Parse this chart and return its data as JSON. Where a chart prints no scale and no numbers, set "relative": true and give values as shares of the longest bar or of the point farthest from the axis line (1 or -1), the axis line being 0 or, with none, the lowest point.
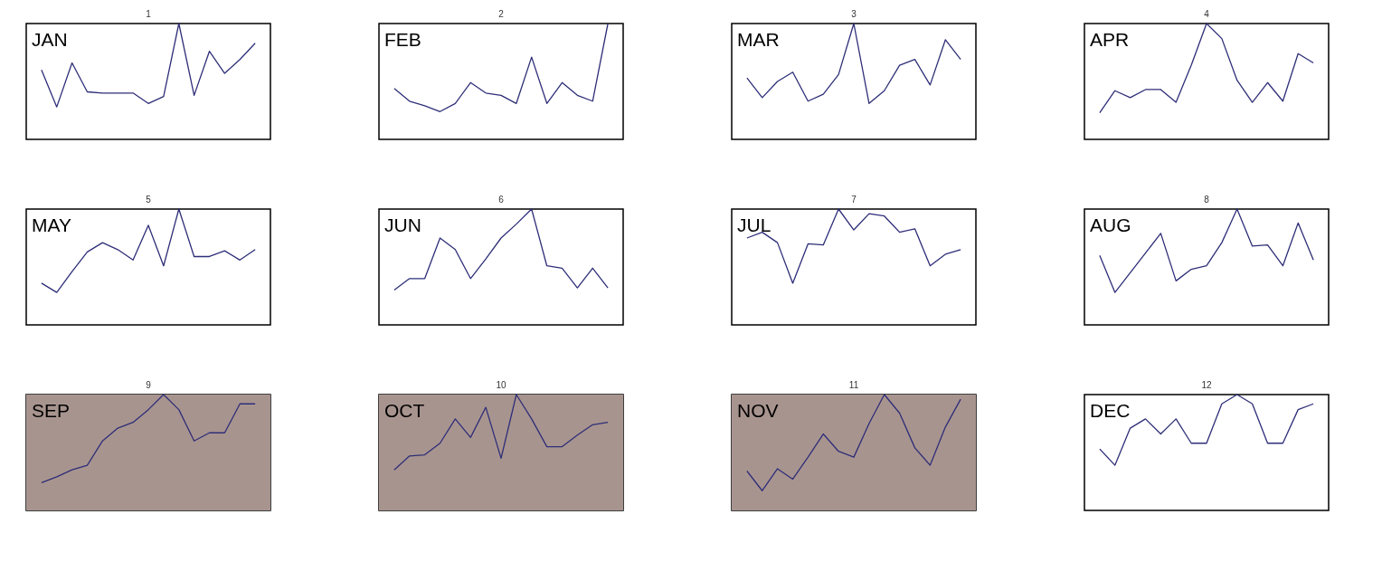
{
  "chart_data": [
    {
      "type": "line",
      "title": "1",
      "relative": true,
      "annotations": [
        "JAN"
      ],
      "categories": [
        null,
        null,
        null,
        null,
        null,
        null,
        null,
        null,
        null,
        null,
        null,
        null,
        null,
        null,
        null
      ],
      "series": [
        {
          "color": "#2e2e78",
          "values": [
            0.6,
            0.28,
            0.66,
            0.41,
            0.4,
            0.4,
            0.4,
            0.31,
            0.37,
            1,
            0.38,
            0.76,
            0.57,
            0.69,
            0.83
          ]
        }
      ]
    },
    {
      "type": "line",
      "title": "2",
      "relative": true,
      "annotations": [
        "FEB"
      ],
      "categories": [
        null,
        null,
        null,
        null,
        null,
        null,
        null,
        null,
        null,
        null,
        null,
        null,
        null,
        null,
        null
      ],
      "series": [
        {
          "color": "#2e2e78",
          "values": [
            0.44,
            0.33,
            0.29,
            0.24,
            0.31,
            0.49,
            0.4,
            0.38,
            0.31,
            0.71,
            0.31,
            0.49,
            0.38,
            0.33,
            1
          ]
        }
      ]
    },
    {
      "type": "line",
      "title": "3",
      "relative": true,
      "annotations": [
        "MAR"
      ],
      "categories": [
        null,
        null,
        null,
        null,
        null,
        null,
        null,
        null,
        null,
        null,
        null,
        null,
        null,
        null,
        null
      ],
      "series": [
        {
          "color": "#2e2e78",
          "values": [
            0.53,
            0.36,
            0.5,
            0.58,
            0.33,
            0.39,
            0.56,
            1,
            0.31,
            0.42,
            0.64,
            0.69,
            0.47,
            0.86,
            0.69
          ]
        }
      ]
    },
    {
      "type": "line",
      "title": "4",
      "relative": true,
      "annotations": [
        "APR"
      ],
      "categories": [
        null,
        null,
        null,
        null,
        null,
        null,
        null,
        null,
        null,
        null,
        null,
        null,
        null,
        null,
        null
      ],
      "series": [
        {
          "color": "#2e2e78",
          "values": [
            0.23,
            0.42,
            0.36,
            0.43,
            0.43,
            0.32,
            0.64,
            1,
            0.87,
            0.51,
            0.32,
            0.49,
            0.33,
            0.74,
            0.66
          ]
        }
      ]
    },
    {
      "type": "line",
      "title": "5",
      "relative": true,
      "annotations": [
        "MAY"
      ],
      "categories": [
        null,
        null,
        null,
        null,
        null,
        null,
        null,
        null,
        null,
        null,
        null,
        null,
        null,
        null,
        null
      ],
      "series": [
        {
          "color": "#2e2e78",
          "values": [
            0.36,
            0.28,
            0.46,
            0.63,
            0.71,
            0.65,
            0.56,
            0.86,
            0.51,
            1,
            0.59,
            0.59,
            0.64,
            0.56,
            0.65
          ]
        }
      ]
    },
    {
      "type": "line",
      "title": "6",
      "relative": true,
      "annotations": [
        "JUN"
      ],
      "categories": [
        null,
        null,
        null,
        null,
        null,
        null,
        null,
        null,
        null,
        null,
        null,
        null,
        null,
        null,
        null
      ],
      "series": [
        {
          "color": "#2e2e78",
          "values": [
            0.3,
            0.4,
            0.4,
            0.75,
            0.65,
            0.4,
            0.57,
            0.75,
            0.87,
            1,
            0.51,
            0.49,
            0.32,
            0.49,
            0.32
          ]
        }
      ]
    },
    {
      "type": "line",
      "title": "7",
      "relative": true,
      "annotations": [
        "JUL"
      ],
      "categories": [
        null,
        null,
        null,
        null,
        null,
        null,
        null,
        null,
        null,
        null,
        null,
        null,
        null,
        null,
        null
      ],
      "series": [
        {
          "color": "#2e2e78",
          "values": [
            0.75,
            0.8,
            0.71,
            0.36,
            0.7,
            0.69,
            1,
            0.82,
            0.96,
            0.94,
            0.8,
            0.83,
            0.51,
            0.61,
            0.65
          ]
        }
      ]
    },
    {
      "type": "line",
      "title": "8",
      "relative": true,
      "annotations": [
        "AUG"
      ],
      "categories": [
        null,
        null,
        null,
        null,
        null,
        null,
        null,
        null,
        null,
        null,
        null,
        null,
        null,
        null,
        null
      ],
      "series": [
        {
          "color": "#2e2e78",
          "values": [
            0.6,
            0.28,
            0.45,
            0.62,
            0.79,
            0.38,
            0.48,
            0.51,
            0.71,
            1,
            0.68,
            0.69,
            0.51,
            0.88,
            0.56
          ]
        }
      ]
    },
    {
      "type": "line",
      "title": "9",
      "relative": true,
      "annotations": [
        "SEP"
      ],
      "categories": [
        null,
        null,
        null,
        null,
        null,
        null,
        null,
        null,
        null,
        null,
        null,
        null,
        null,
        null,
        null
      ],
      "bands": [
        {
          "axis": "y",
          "from": 0,
          "to": 1,
          "color": "#a8948f"
        }
      ],
      "series": [
        {
          "color": "#2e2e78",
          "values": [
            0.24,
            0.29,
            0.35,
            0.39,
            0.6,
            0.71,
            0.76,
            0.87,
            1,
            0.87,
            0.6,
            0.67,
            0.67,
            0.92,
            0.92
          ]
        }
      ]
    },
    {
      "type": "line",
      "title": "10",
      "relative": true,
      "annotations": [
        "OCT"
      ],
      "categories": [
        null,
        null,
        null,
        null,
        null,
        null,
        null,
        null,
        null,
        null,
        null,
        null,
        null,
        null,
        null
      ],
      "bands": [
        {
          "axis": "y",
          "from": 0,
          "to": 1,
          "color": "#a8948f"
        }
      ],
      "series": [
        {
          "color": "#2e2e78",
          "values": [
            0.35,
            0.47,
            0.48,
            0.58,
            0.79,
            0.63,
            0.89,
            0.45,
            1,
            0.79,
            0.55,
            0.55,
            0.65,
            0.74,
            0.76
          ]
        }
      ]
    },
    {
      "type": "line",
      "title": "11",
      "relative": true,
      "annotations": [
        "NOV"
      ],
      "categories": [
        null,
        null,
        null,
        null,
        null,
        null,
        null,
        null,
        null,
        null,
        null,
        null,
        null,
        null,
        null
      ],
      "bands": [
        {
          "axis": "y",
          "from": 0,
          "to": 1,
          "color": "#a8948f"
        }
      ],
      "series": [
        {
          "color": "#2e2e78",
          "values": [
            0.34,
            0.17,
            0.36,
            0.27,
            0.46,
            0.66,
            0.51,
            0.46,
            0.75,
            1,
            0.84,
            0.54,
            0.39,
            0.72,
            0.96
          ]
        }
      ]
    },
    {
      "type": "line",
      "title": "12",
      "relative": true,
      "annotations": [
        "DEC"
      ],
      "categories": [
        null,
        null,
        null,
        null,
        null,
        null,
        null,
        null,
        null,
        null,
        null,
        null,
        null,
        null,
        null
      ],
      "series": [
        {
          "color": "#2e2e78",
          "values": [
            0.53,
            0.39,
            0.71,
            0.79,
            0.66,
            0.79,
            0.58,
            0.58,
            0.92,
            1,
            0.92,
            0.58,
            0.58,
            0.87,
            0.92
          ]
        }
      ]
    }
  ]
}
